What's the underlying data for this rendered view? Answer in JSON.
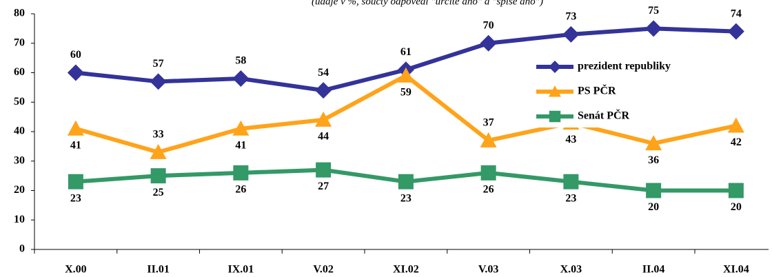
{
  "chart_data": {
    "type": "line",
    "subtitle": "(údaje v %, součty odpovědí \"určitě ano\" a \"spíše ano\")",
    "categories": [
      "X.00",
      "II.01",
      "IX.01",
      "V.02",
      "XI.02",
      "V.03",
      "X.03",
      "II.04",
      "XI.04"
    ],
    "series": [
      {
        "name": "prezident republiky",
        "color": "#333399",
        "marker": "diamond",
        "values": [
          60,
          57,
          58,
          54,
          61,
          70,
          73,
          75,
          74
        ]
      },
      {
        "name": "PS PČR",
        "color": "#ffa31a",
        "marker": "triangle",
        "values": [
          41,
          33,
          41,
          44,
          59,
          37,
          43,
          36,
          42
        ]
      },
      {
        "name": "Senát PČR",
        "color": "#339966",
        "marker": "square",
        "values": [
          23,
          25,
          26,
          27,
          23,
          26,
          23,
          20,
          20
        ]
      }
    ],
    "ylim": [
      0,
      80
    ],
    "yticks": [
      0,
      10,
      20,
      30,
      40,
      50,
      60,
      70,
      80
    ],
    "grid": false,
    "legend": "right"
  }
}
